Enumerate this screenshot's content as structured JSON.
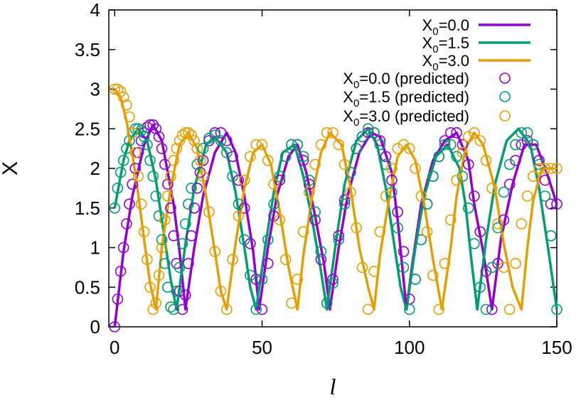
{
  "chart_data": {
    "type": "line",
    "title": "",
    "xlabel": "l",
    "ylabel": "X",
    "xlim": [
      -2,
      150
    ],
    "ylim": [
      0,
      4
    ],
    "xticks": [
      0,
      50,
      100,
      150
    ],
    "xtick_labels": [
      "0",
      "50",
      "100",
      "150"
    ],
    "yticks": [
      0,
      0.5,
      1,
      1.5,
      2,
      2.5,
      3,
      3.5,
      4
    ],
    "ytick_labels": [
      "0",
      "0.5",
      "1",
      "1.5",
      "2",
      "2.5",
      "3",
      "3.5",
      "4"
    ],
    "grid": false,
    "legend_position": "top-right",
    "series": [
      {
        "name": "X0=0.0",
        "legend_main": "X",
        "legend_sub": "0",
        "legend_rest": "=0.0",
        "style": "line",
        "color": "#9400d3",
        "x": [
          0,
          3,
          6,
          10,
          13,
          16,
          20,
          22,
          24,
          27,
          30,
          34,
          38,
          41,
          44,
          47,
          49,
          52,
          55,
          59,
          62,
          65,
          68,
          71,
          73,
          76,
          79,
          83,
          87,
          90,
          94,
          96,
          99,
          101,
          104,
          108,
          112,
          116,
          120,
          122,
          125,
          128,
          131,
          135,
          139,
          143,
          147,
          150
        ],
        "y": [
          0.0,
          0.95,
          1.65,
          2.3,
          2.55,
          2.35,
          1.55,
          0.95,
          0.22,
          1.0,
          1.65,
          2.2,
          2.45,
          2.2,
          1.65,
          0.95,
          0.22,
          1.0,
          1.65,
          2.15,
          2.3,
          1.95,
          1.4,
          0.8,
          0.22,
          1.0,
          1.65,
          2.2,
          2.45,
          2.4,
          1.95,
          1.35,
          0.22,
          0.8,
          1.55,
          2.1,
          2.35,
          2.45,
          2.1,
          1.55,
          0.95,
          0.22,
          1.1,
          1.8,
          2.3,
          2.3,
          1.9,
          1.55
        ]
      },
      {
        "name": "X0=1.5",
        "legend_main": "X",
        "legend_sub": "0",
        "legend_rest": "=1.5",
        "style": "line",
        "color": "#009e73",
        "x": [
          0,
          3,
          5,
          8,
          11,
          14,
          17,
          19,
          21,
          24,
          27,
          31,
          34,
          38,
          41,
          44,
          46,
          48,
          51,
          54,
          57,
          61,
          64,
          67,
          70,
          72,
          75,
          78,
          82,
          86,
          89,
          92,
          95,
          97,
          99,
          102,
          105,
          109,
          113,
          117,
          119,
          121,
          123,
          126,
          129,
          133,
          137,
          141,
          144,
          147,
          150
        ],
        "y": [
          1.5,
          2.1,
          2.35,
          2.5,
          2.35,
          1.85,
          1.1,
          0.6,
          0.22,
          1.05,
          1.75,
          2.3,
          2.4,
          2.2,
          1.7,
          1.0,
          0.5,
          0.22,
          1.0,
          1.7,
          2.2,
          2.3,
          1.9,
          1.35,
          0.7,
          0.22,
          1.05,
          1.8,
          2.35,
          2.5,
          2.3,
          1.75,
          1.0,
          0.5,
          0.22,
          1.0,
          1.65,
          2.15,
          2.3,
          2.0,
          1.55,
          0.85,
          0.22,
          1.1,
          1.8,
          2.35,
          2.5,
          2.3,
          1.75,
          1.0,
          0.22
        ]
      },
      {
        "name": "X0=3.0",
        "legend_main": "X",
        "legend_sub": "0",
        "legend_rest": "=3.0",
        "style": "line",
        "color": "#e69f00",
        "x": [
          0,
          2,
          4,
          7,
          10,
          12,
          14,
          16,
          19,
          22,
          25,
          28,
          31,
          34,
          36,
          38,
          41,
          44,
          47,
          50,
          53,
          56,
          59,
          62,
          64,
          67,
          70,
          73,
          77,
          80,
          83,
          86,
          88,
          90,
          93,
          96,
          99,
          102,
          105,
          108,
          111,
          114,
          116,
          119,
          122,
          125,
          129,
          132,
          135,
          138,
          140,
          142,
          145,
          148,
          150
        ],
        "y": [
          3.0,
          2.9,
          2.6,
          1.95,
          1.1,
          0.55,
          0.22,
          1.0,
          1.75,
          2.3,
          2.45,
          2.25,
          1.65,
          0.95,
          0.45,
          0.22,
          1.05,
          1.75,
          2.2,
          2.3,
          2.05,
          1.45,
          0.75,
          0.22,
          0.9,
          1.65,
          2.2,
          2.45,
          2.3,
          1.75,
          1.0,
          0.5,
          0.22,
          0.9,
          1.6,
          2.15,
          2.3,
          2.1,
          1.55,
          0.85,
          0.22,
          1.0,
          1.65,
          2.25,
          2.45,
          2.3,
          1.75,
          1.05,
          0.5,
          0.22,
          1.0,
          1.6,
          2.0,
          2.0,
          2.0
        ]
      },
      {
        "name": "X0=0.0 (predicted)",
        "legend_main": "X",
        "legend_sub": "0",
        "legend_rest": "=0.0 (predicted)",
        "style": "points",
        "color": "#9400d3",
        "x": [
          0,
          1,
          2,
          3,
          4,
          5,
          6,
          7,
          8,
          9,
          10,
          11,
          12,
          13,
          14,
          15,
          16,
          17,
          18,
          19,
          20,
          21,
          22,
          23,
          24,
          25,
          26,
          27,
          28,
          29,
          30,
          32,
          34,
          36,
          38,
          40,
          42,
          44,
          46,
          48,
          50,
          52,
          54,
          56,
          58,
          60,
          62,
          64,
          66,
          68,
          70,
          72,
          74,
          76,
          78,
          80,
          82,
          84,
          86,
          88,
          90,
          92,
          94,
          96,
          98,
          100,
          102,
          104,
          106,
          108,
          110,
          112,
          114,
          116,
          118,
          120,
          122,
          124,
          126,
          128,
          130,
          132,
          134,
          136,
          138,
          140,
          142,
          144,
          146,
          148,
          150
        ],
        "y": [
          0.0,
          0.35,
          0.7,
          1.0,
          1.3,
          1.55,
          1.8,
          2.0,
          2.2,
          2.35,
          2.45,
          2.52,
          2.55,
          2.55,
          2.5,
          2.4,
          2.25,
          2.05,
          1.8,
          1.5,
          1.15,
          0.8,
          0.45,
          0.22,
          0.4,
          0.8,
          1.15,
          1.5,
          1.75,
          1.95,
          2.1,
          2.35,
          2.45,
          2.45,
          2.35,
          2.15,
          1.85,
          1.5,
          1.05,
          0.6,
          0.22,
          0.8,
          1.4,
          1.85,
          2.15,
          2.3,
          2.3,
          2.1,
          1.8,
          1.35,
          0.85,
          0.3,
          0.6,
          1.15,
          1.6,
          1.95,
          2.25,
          2.4,
          2.45,
          2.45,
          2.35,
          2.15,
          1.85,
          1.45,
          0.95,
          0.35,
          0.6,
          1.1,
          1.55,
          1.9,
          2.15,
          2.35,
          2.45,
          2.45,
          2.3,
          2.05,
          1.65,
          1.2,
          0.7,
          0.22,
          0.8,
          1.35,
          1.8,
          2.1,
          2.3,
          2.35,
          2.3,
          2.1,
          1.85,
          1.55,
          1.55
        ]
      },
      {
        "name": "X0=1.5 (predicted)",
        "legend_main": "X",
        "legend_sub": "0",
        "legend_rest": "=1.5 (predicted)",
        "style": "points",
        "color": "#009e73",
        "x": [
          0,
          1,
          2,
          3,
          4,
          5,
          6,
          7,
          8,
          9,
          10,
          11,
          12,
          13,
          14,
          15,
          16,
          17,
          18,
          19,
          20,
          21,
          22,
          23,
          24,
          25,
          26,
          28,
          30,
          32,
          34,
          36,
          38,
          40,
          42,
          44,
          46,
          48,
          50,
          52,
          54,
          56,
          58,
          60,
          62,
          64,
          66,
          68,
          70,
          72,
          74,
          76,
          78,
          80,
          82,
          84,
          86,
          88,
          90,
          92,
          94,
          96,
          98,
          100,
          102,
          104,
          106,
          108,
          110,
          112,
          114,
          116,
          118,
          120,
          122,
          124,
          126,
          128,
          130,
          132,
          134,
          136,
          138,
          140,
          142,
          144,
          146,
          148,
          150
        ],
        "y": [
          1.5,
          1.75,
          1.95,
          2.1,
          2.25,
          2.35,
          2.45,
          2.5,
          2.5,
          2.48,
          2.4,
          2.3,
          2.1,
          1.9,
          1.65,
          1.4,
          1.1,
          0.8,
          0.5,
          0.25,
          0.22,
          0.45,
          0.75,
          1.05,
          1.3,
          1.55,
          1.75,
          2.05,
          2.25,
          2.38,
          2.42,
          2.35,
          2.2,
          1.9,
          1.55,
          1.1,
          0.65,
          0.22,
          0.6,
          1.1,
          1.55,
          1.9,
          2.15,
          2.3,
          2.3,
          2.15,
          1.85,
          1.45,
          0.95,
          0.3,
          0.55,
          1.1,
          1.55,
          1.95,
          2.25,
          2.4,
          2.5,
          2.45,
          2.3,
          2.05,
          1.7,
          1.25,
          0.75,
          0.22,
          0.6,
          1.1,
          1.55,
          1.9,
          2.15,
          2.3,
          2.3,
          2.15,
          1.9,
          1.5,
          1.05,
          0.5,
          0.22,
          0.75,
          1.25,
          1.7,
          2.05,
          2.3,
          2.45,
          2.45,
          2.3,
          2.05,
          1.65,
          1.15,
          0.22
        ]
      },
      {
        "name": "X0=3.0 (predicted)",
        "legend_main": "X",
        "legend_sub": "0",
        "legend_rest": "=3.0 (predicted)",
        "style": "points",
        "color": "#e69f00",
        "x": [
          0,
          1,
          2,
          3,
          4,
          5,
          6,
          7,
          8,
          9,
          10,
          11,
          12,
          13,
          14,
          15,
          16,
          17,
          18,
          19,
          20,
          21,
          22,
          23,
          24,
          25,
          26,
          27,
          28,
          29,
          30,
          32,
          34,
          36,
          38,
          40,
          42,
          44,
          46,
          48,
          50,
          52,
          54,
          56,
          58,
          60,
          62,
          64,
          66,
          68,
          70,
          72,
          74,
          76,
          78,
          80,
          82,
          84,
          86,
          88,
          90,
          92,
          94,
          96,
          98,
          100,
          102,
          104,
          106,
          108,
          110,
          112,
          114,
          116,
          118,
          120,
          122,
          124,
          126,
          128,
          130,
          132,
          134,
          136,
          138,
          140,
          142,
          144,
          146,
          148,
          150
        ],
        "y": [
          3.0,
          3.0,
          2.97,
          2.9,
          2.8,
          2.65,
          2.45,
          2.2,
          1.9,
          1.55,
          1.2,
          0.85,
          0.5,
          0.22,
          0.3,
          0.65,
          1.0,
          1.35,
          1.65,
          1.9,
          2.1,
          2.25,
          2.35,
          2.42,
          2.45,
          2.45,
          2.42,
          2.35,
          2.25,
          2.1,
          1.9,
          1.45,
          0.95,
          0.45,
          0.22,
          0.85,
          1.4,
          1.85,
          2.15,
          2.3,
          2.3,
          2.1,
          1.8,
          1.35,
          0.85,
          0.3,
          0.6,
          1.2,
          1.7,
          2.05,
          2.3,
          2.45,
          2.45,
          2.3,
          2.05,
          1.7,
          1.25,
          0.75,
          0.22,
          0.7,
          1.2,
          1.65,
          2.0,
          2.25,
          2.3,
          2.25,
          2.0,
          1.65,
          1.2,
          0.65,
          0.22,
          0.8,
          1.35,
          1.85,
          2.2,
          2.4,
          2.45,
          2.35,
          2.1,
          1.75,
          1.3,
          0.75,
          0.22,
          0.8,
          1.3,
          1.65,
          1.9,
          2.0,
          2.0,
          2.0,
          2.0
        ]
      }
    ]
  }
}
